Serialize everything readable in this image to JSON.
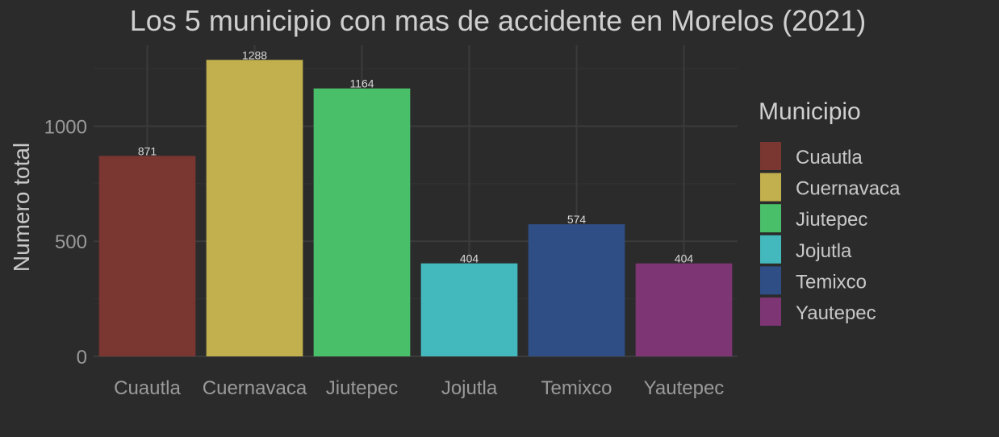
{
  "chart_data": {
    "type": "bar",
    "title": "Los 5 municipio con mas de accidente en Morelos  (2021)",
    "xlabel": "",
    "ylabel": "Numero total",
    "categories": [
      "Cuautla",
      "Cuernavaca",
      "Jiutepec",
      "Jojutla",
      "Temixco",
      "Yautepec"
    ],
    "values": [
      871,
      1288,
      1164,
      404,
      574,
      404
    ],
    "data_labels": [
      "871",
      "1288",
      "1164",
      "404",
      "574",
      "404"
    ],
    "yticks": [
      0,
      500,
      1000
    ],
    "ytick_labels": [
      "0",
      "500",
      "1000"
    ],
    "ylim": [
      0,
      1352
    ],
    "grid": true,
    "legend": {
      "title": "Municipio",
      "position": "right",
      "entries": [
        "Cuautla",
        "Cuernavaca",
        "Jiutepec",
        "Jojutla",
        "Temixco",
        "Yautepec"
      ]
    },
    "colors": [
      "#7a3631",
      "#c1b04d",
      "#4abf6a",
      "#43b9bd",
      "#2e4e85",
      "#7d3673"
    ]
  },
  "colors": {
    "background": "#2b2b2b",
    "panel_background": "#2b2b2b",
    "grid_major": "#3b3b3b",
    "grid_minor": "#333333"
  }
}
